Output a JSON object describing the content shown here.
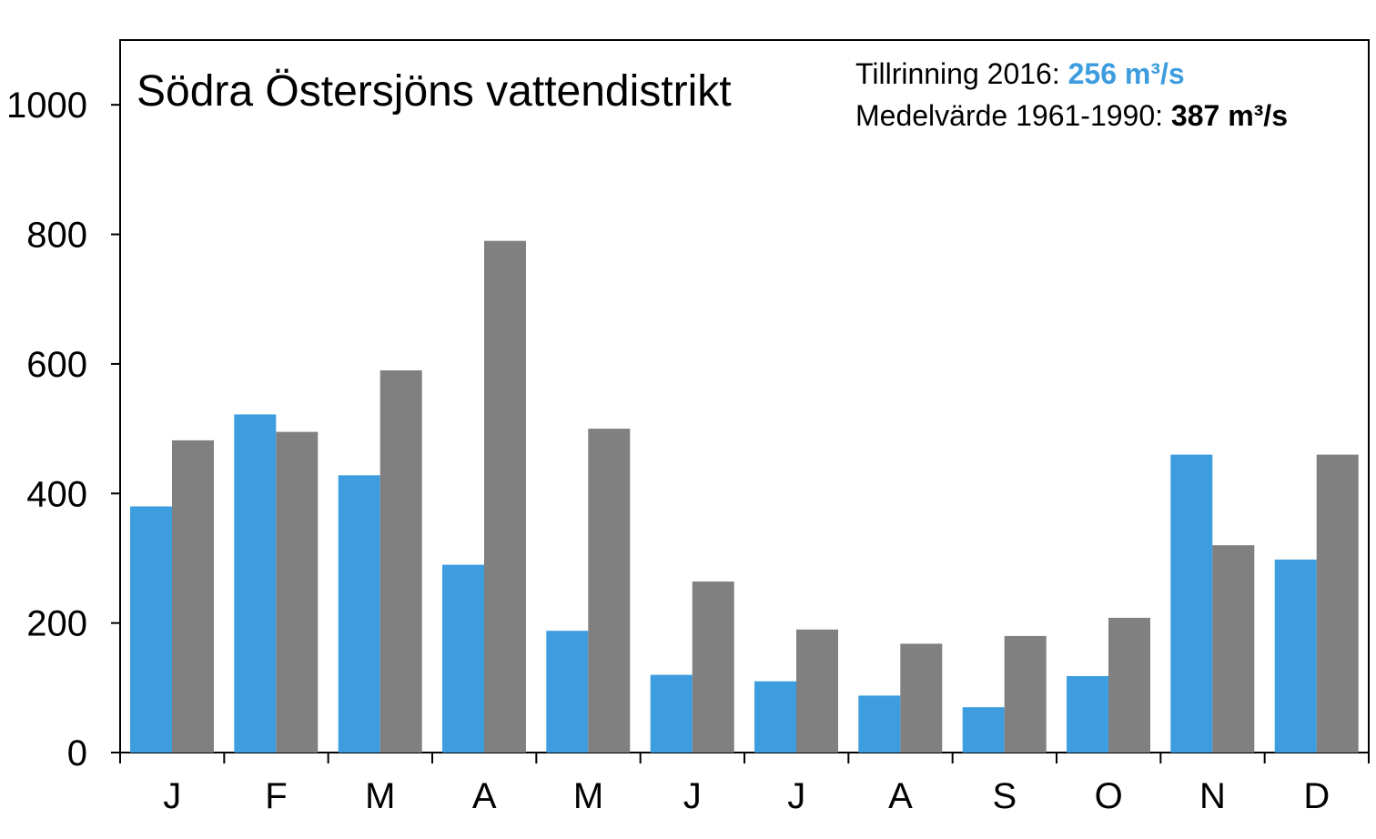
{
  "chart_data": {
    "type": "bar",
    "title": "Södra Östersjöns vattendistrikt",
    "annotation": {
      "line1_label": "Tillrinning 2016: ",
      "line1_value": "256 m³/s",
      "line2_label": "Medelvärde 1961-1990: ",
      "line2_value": "387 m³/s"
    },
    "categories": [
      "J",
      "F",
      "M",
      "A",
      "M",
      "J",
      "J",
      "A",
      "S",
      "O",
      "N",
      "D"
    ],
    "series": [
      {
        "color": "#3d9ddf",
        "values": [
          380,
          522,
          428,
          290,
          188,
          120,
          110,
          88,
          70,
          118,
          460,
          298
        ]
      },
      {
        "color": "#808080",
        "values": [
          482,
          495,
          590,
          790,
          500,
          264,
          190,
          168,
          180,
          208,
          320,
          460
        ]
      }
    ],
    "yticks": [
      0,
      200,
      400,
      600,
      800,
      1000
    ],
    "ylim": [
      0,
      1100
    ],
    "xlabel": "",
    "ylabel": "",
    "grid": false,
    "colors": {
      "axis": "#000000",
      "highlight_2016": "#3d9ddf"
    }
  }
}
